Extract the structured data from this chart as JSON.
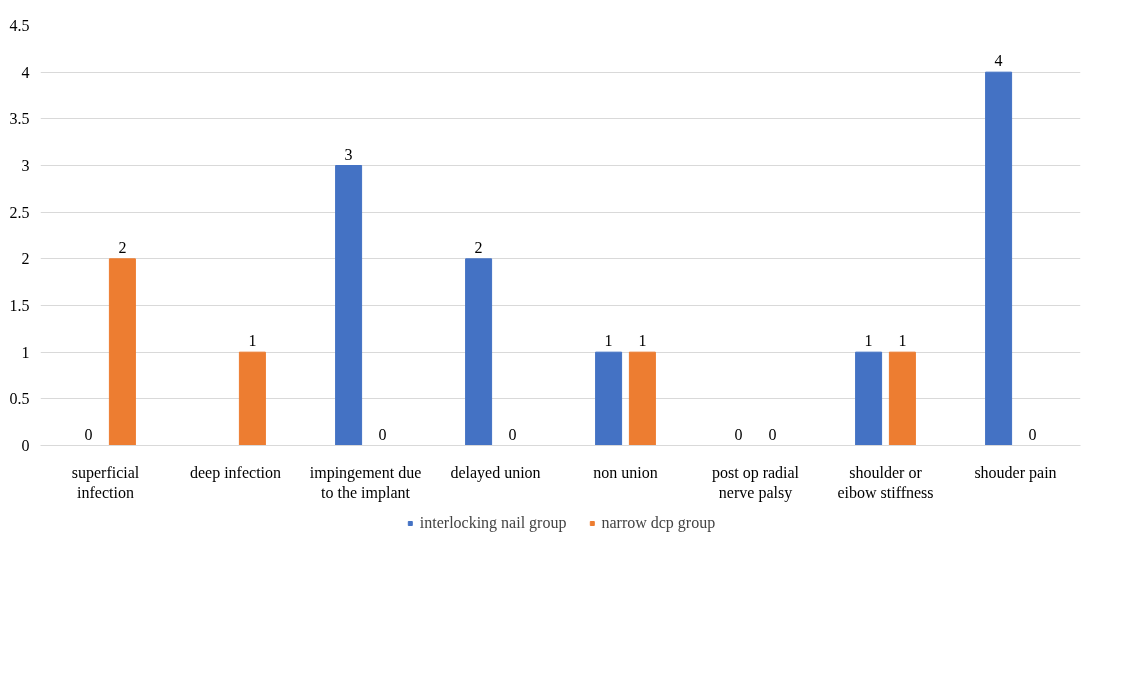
{
  "chart_data": {
    "type": "bar",
    "categories": [
      "superficial infection",
      "deep infection",
      "impingement due to the implant",
      "delayed union",
      "non union",
      "post op radial nerve palsy",
      "shoulder or eibow stiffness",
      "shouder pain"
    ],
    "series": [
      {
        "name": "interlocking nail group",
        "color": "#4472c4",
        "values": [
          0,
          0,
          3,
          2,
          1,
          0,
          1,
          4
        ],
        "value_labels": [
          "0",
          null,
          "3",
          "2",
          "1",
          "0",
          "1",
          "4"
        ]
      },
      {
        "name": "narrow dcp group",
        "color": "#ed7d31",
        "values": [
          2,
          1,
          0,
          0,
          1,
          0,
          1,
          0
        ],
        "value_labels": [
          "2",
          "1",
          "0",
          "0",
          "1",
          "0",
          "1",
          "0"
        ]
      }
    ],
    "ylim": [
      0,
      4.5
    ],
    "yticks": [
      0,
      0.5,
      1,
      1.5,
      2,
      2.5,
      3,
      3.5,
      4,
      4.5
    ],
    "grid": "y",
    "legend": "bottom"
  }
}
